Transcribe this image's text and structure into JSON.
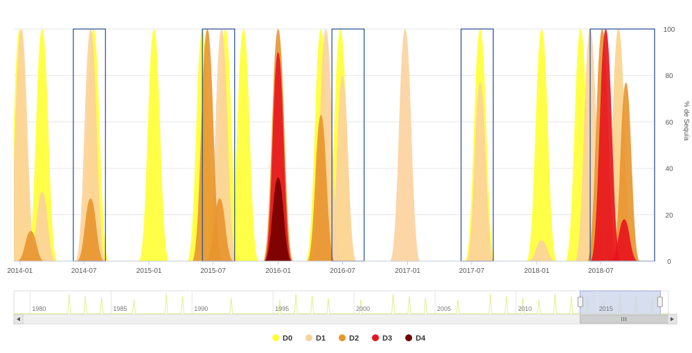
{
  "chart_data": {
    "type": "area",
    "title": "",
    "xlabel": "",
    "ylabel": "% de Sequía",
    "ylim": [
      0,
      100
    ],
    "y_ticks": [
      "0",
      "20",
      "40",
      "60",
      "80",
      "100"
    ],
    "x_ticks": [
      "2014-01",
      "2014-07",
      "2015-01",
      "2015-07",
      "2016-01",
      "2016-07",
      "2017-01",
      "2017-07",
      "2018-01",
      "2018-07"
    ],
    "x_range": [
      "2013-12-15",
      "2018-11-30"
    ],
    "grid": true,
    "legend_position": "bottom",
    "colors": {
      "D0": "#ffff33",
      "D1": "#fcd19c",
      "D2": "#e8952d",
      "D3": "#e8141e",
      "D4": "#730000"
    },
    "series": [
      {
        "name": "D0",
        "peaks": [
          {
            "date": "2014-01-01",
            "value": 100
          },
          {
            "date": "2014-03-05",
            "value": 100
          },
          {
            "date": "2014-07-28",
            "value": 100
          },
          {
            "date": "2015-01-15",
            "value": 100
          },
          {
            "date": "2015-06-01",
            "value": 100
          },
          {
            "date": "2015-08-05",
            "value": 100
          },
          {
            "date": "2015-09-25",
            "value": 100
          },
          {
            "date": "2016-05-01",
            "value": 100
          },
          {
            "date": "2016-06-25",
            "value": 100
          },
          {
            "date": "2017-07-25",
            "value": 100
          },
          {
            "date": "2018-01-15",
            "value": 100
          },
          {
            "date": "2018-05-05",
            "value": 100
          },
          {
            "date": "2018-08-20",
            "value": 100
          }
        ]
      },
      {
        "name": "D1",
        "peaks": [
          {
            "date": "2014-01-05",
            "value": 100
          },
          {
            "date": "2014-03-05",
            "value": 30
          },
          {
            "date": "2014-07-20",
            "value": 100
          },
          {
            "date": "2015-07-25",
            "value": 100
          },
          {
            "date": "2016-05-15",
            "value": 100
          },
          {
            "date": "2016-07-01",
            "value": 80
          },
          {
            "date": "2016-12-25",
            "value": 100
          },
          {
            "date": "2017-07-25",
            "value": 77
          },
          {
            "date": "2018-01-15",
            "value": 9
          },
          {
            "date": "2018-06-01",
            "value": 100
          },
          {
            "date": "2018-08-20",
            "value": 100
          }
        ]
      },
      {
        "name": "D2",
        "peaks": [
          {
            "date": "2014-02-01",
            "value": 13
          },
          {
            "date": "2014-07-20",
            "value": 27
          },
          {
            "date": "2015-06-15",
            "value": 100
          },
          {
            "date": "2015-07-20",
            "value": 27
          },
          {
            "date": "2016-01-01",
            "value": 100
          },
          {
            "date": "2016-05-01",
            "value": 63
          },
          {
            "date": "2018-07-05",
            "value": 100
          },
          {
            "date": "2018-09-10",
            "value": 77
          }
        ]
      },
      {
        "name": "D3",
        "peaks": [
          {
            "date": "2016-01-01",
            "value": 90
          },
          {
            "date": "2018-07-15",
            "value": 100
          },
          {
            "date": "2018-09-05",
            "value": 18
          }
        ]
      },
      {
        "name": "D4",
        "peaks": [
          {
            "date": "2016-01-01",
            "value": 36
          }
        ]
      }
    ],
    "highlight_boxes": [
      {
        "start": "2014-06-01",
        "end": "2014-08-31"
      },
      {
        "start": "2015-06-01",
        "end": "2015-08-31"
      },
      {
        "start": "2016-06-01",
        "end": "2016-08-31"
      },
      {
        "start": "2017-06-01",
        "end": "2017-08-31"
      },
      {
        "start": "2018-06-01",
        "end": "2018-11-30"
      }
    ],
    "navigator": {
      "labels": [
        "1980",
        "1985",
        "1990",
        "1995",
        "2000",
        "2005",
        "2010",
        "2015"
      ],
      "range": [
        "1979-01-01",
        "2019-06-01"
      ],
      "selected": [
        "2013-12-15",
        "2018-11-30"
      ]
    }
  }
}
